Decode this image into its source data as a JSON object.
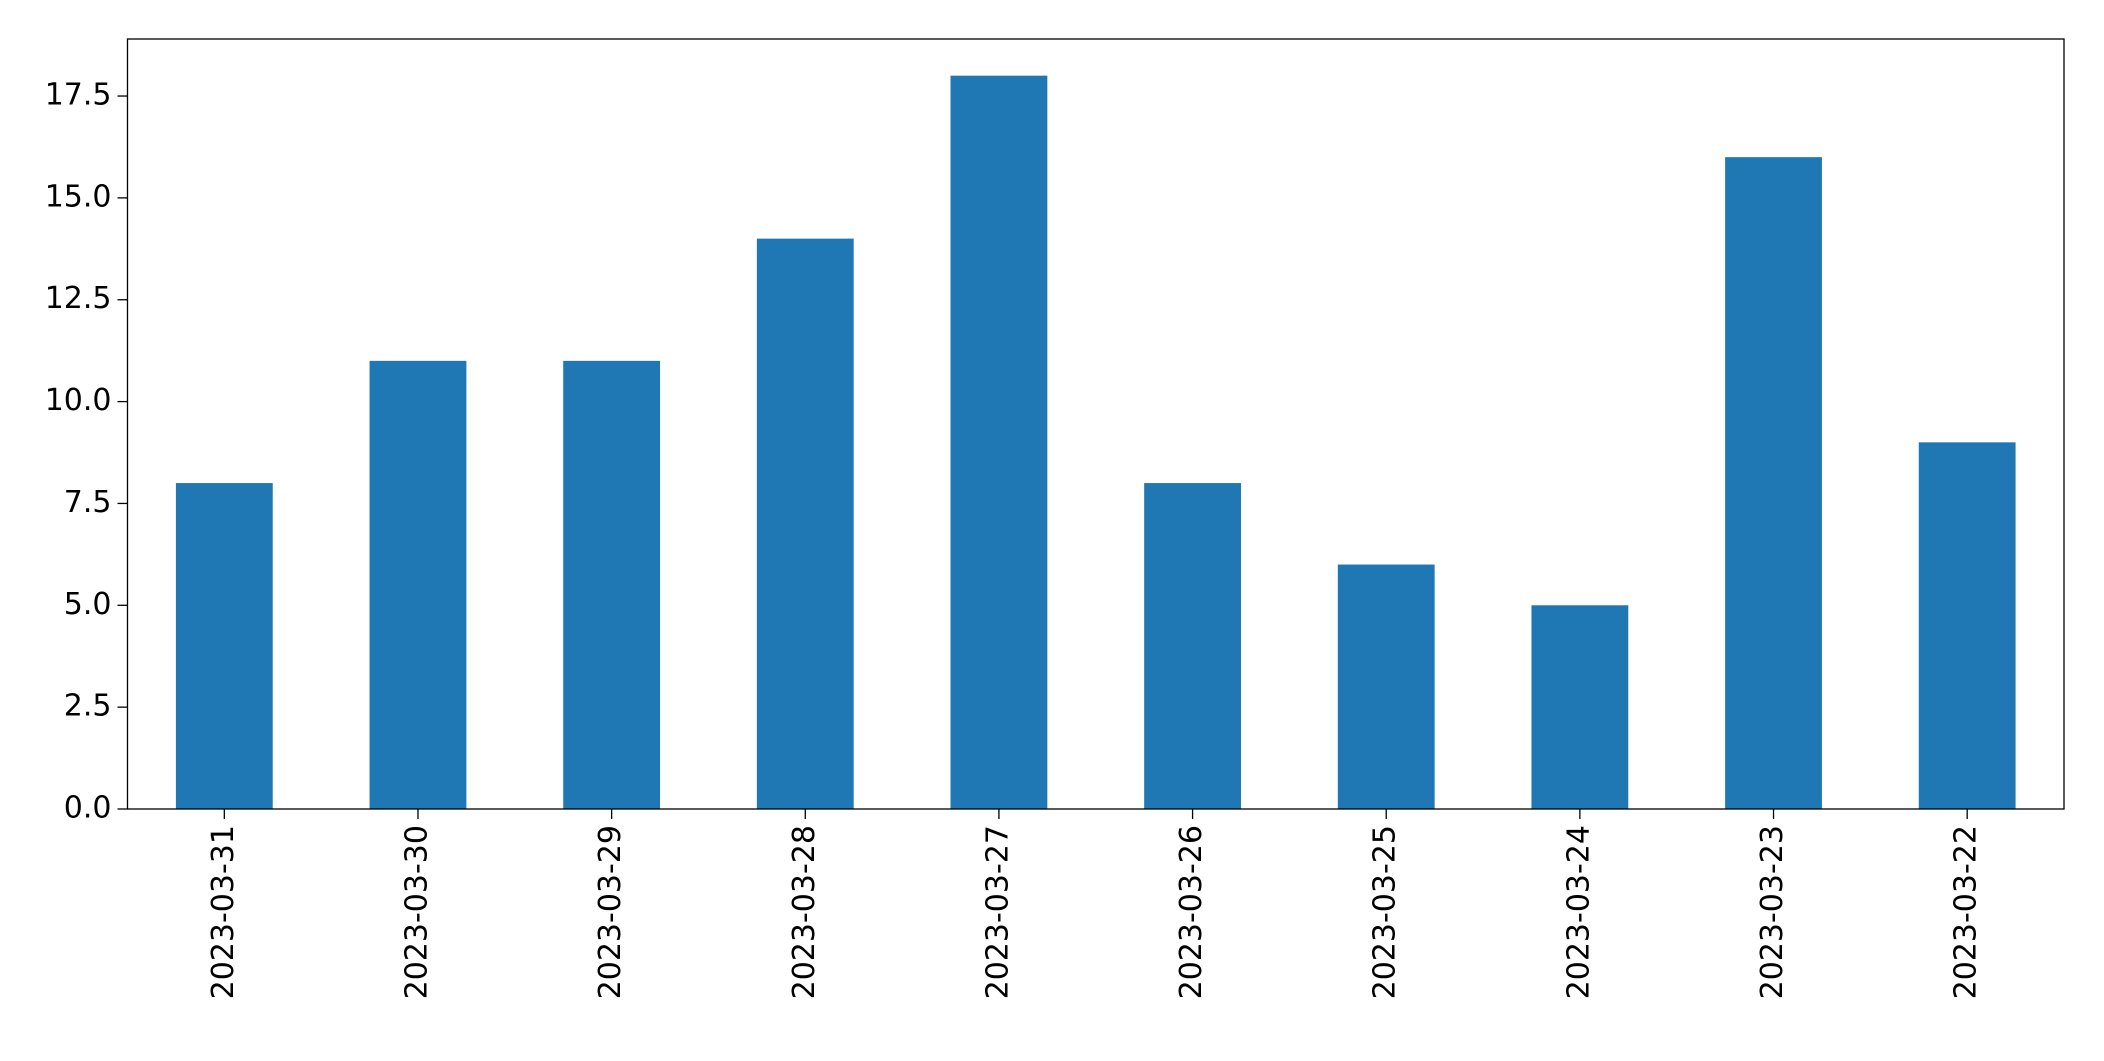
{
  "chart_data": {
    "type": "bar",
    "categories": [
      "2023-03-31",
      "2023-03-30",
      "2023-03-29",
      "2023-03-28",
      "2023-03-27",
      "2023-03-26",
      "2023-03-25",
      "2023-03-24",
      "2023-03-23",
      "2023-03-22"
    ],
    "values": [
      8,
      11,
      11,
      14,
      18,
      8,
      6,
      5,
      16,
      9
    ],
    "color": "#1f77b4",
    "ylim": [
      0,
      18.9
    ],
    "yticks": [
      {
        "value": 0,
        "label": "0.0"
      },
      {
        "value": 2.5,
        "label": "2.5"
      },
      {
        "value": 5,
        "label": "5.0"
      },
      {
        "value": 7.5,
        "label": "7.5"
      },
      {
        "value": 10,
        "label": "10.0"
      },
      {
        "value": 12.5,
        "label": "12.5"
      },
      {
        "value": 15,
        "label": "15.0"
      },
      {
        "value": 17.5,
        "label": "17.5"
      }
    ],
    "grid": false
  }
}
